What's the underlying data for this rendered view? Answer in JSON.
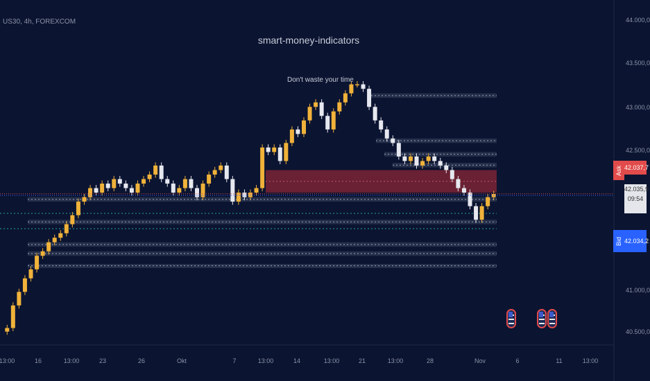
{
  "ticker": {
    "symbol": "US30",
    "interval": "4h",
    "source": "FOREXCOM",
    "text": "US30, 4h, FOREXCOM"
  },
  "indicator_name": "smart-money-indicators",
  "note": "Don't waste your time",
  "price_axis": {
    "labels": [
      "44.000,0",
      "43.500,0",
      "43.000,0",
      "42.500,0",
      "41.000,0",
      "40.500,0"
    ]
  },
  "quotes": {
    "ask_label": "Ask",
    "ask_price": "42.037,7",
    "last_price": "42.035,9",
    "countdown": "09:54",
    "bid_label": "Bid",
    "bid_price": "42.034,2"
  },
  "time_axis": {
    "labels": [
      "13:00",
      "16",
      "13:00",
      "23",
      "26",
      "Okt",
      "7",
      "13:00",
      "14",
      "13:00",
      "21",
      "13:00",
      "28",
      "Nov",
      "6",
      "11",
      "13:00"
    ]
  },
  "events": [
    {
      "icon": "us-flag-icon"
    },
    {
      "icon": "us-flag-icon"
    },
    {
      "icon": "us-flag-icon"
    }
  ],
  "colors": {
    "background": "#0b1431",
    "candle_up": "#f0b23a",
    "candle_down": "#e6e8ef",
    "supply_zone": "#8a2634",
    "ask": "#e24b4b",
    "bid": "#2962ff",
    "cyan_level": "#26a69a"
  },
  "chart_data": {
    "type": "candlestick",
    "y_axis_range": [
      40500,
      44000
    ],
    "close_path": [
      40550,
      40800,
      40950,
      41100,
      41200,
      41350,
      41400,
      41500,
      41550,
      41600,
      41700,
      41800,
      41950,
      42000,
      42100,
      42050,
      42150,
      42100,
      42200,
      42150,
      42100,
      42050,
      42150,
      42200,
      42250,
      42350,
      42200,
      42150,
      42050,
      42100,
      42200,
      42100,
      42000,
      42150,
      42250,
      42300,
      42350,
      42200,
      41950,
      42050,
      42000,
      42050,
      42100,
      42550,
      42500,
      42550,
      42400,
      42600,
      42750,
      42700,
      42850,
      43000,
      43050,
      42900,
      42750,
      42950,
      43050,
      43150,
      43250,
      43250,
      43200,
      43000,
      42850,
      42750,
      42650,
      42600,
      42450,
      42400,
      42450,
      42350,
      42400,
      42450,
      42400,
      42350,
      42300,
      42200,
      42100,
      42050,
      41900,
      41750,
      41900,
      42000,
      42035
    ],
    "levels": [
      {
        "kind": "zone",
        "from": 43100,
        "to": 43150
      },
      {
        "kind": "zone",
        "from": 42600,
        "to": 42650
      },
      {
        "kind": "zone",
        "from": 42450,
        "to": 42500
      },
      {
        "kind": "zone",
        "from": 42330,
        "to": 42380
      },
      {
        "kind": "supply",
        "from": 42050,
        "to": 42300
      },
      {
        "kind": "zone",
        "from": 41950,
        "to": 42000
      },
      {
        "kind": "zone",
        "from": 41700,
        "to": 41750
      },
      {
        "kind": "zone",
        "from": 41450,
        "to": 41500
      },
      {
        "kind": "zone",
        "from": 41350,
        "to": 41400
      },
      {
        "kind": "zone",
        "from": 41220,
        "to": 41260
      }
    ]
  }
}
